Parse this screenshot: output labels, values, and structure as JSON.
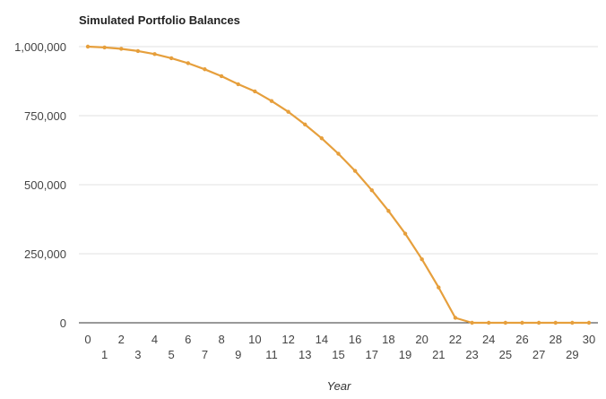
{
  "chart_data": {
    "type": "line",
    "title": "Simulated Portfolio Balances",
    "xlabel": "Year",
    "ylabel": "",
    "ylim": [
      0,
      1000000
    ],
    "yticks": [
      0,
      250000,
      500000,
      750000,
      1000000
    ],
    "ytick_labels": [
      "0",
      "250,000",
      "500,000",
      "750,000",
      "1,000,000"
    ],
    "xlim": [
      0,
      30
    ],
    "xticks": [
      0,
      1,
      2,
      3,
      4,
      5,
      6,
      7,
      8,
      9,
      10,
      11,
      12,
      13,
      14,
      15,
      16,
      17,
      18,
      19,
      20,
      21,
      22,
      23,
      24,
      25,
      26,
      27,
      28,
      29,
      30
    ],
    "grid": true,
    "legend": "none",
    "series": [
      {
        "color": "#e69f3c",
        "x": [
          0,
          1,
          2,
          3,
          4,
          5,
          6,
          7,
          8,
          9,
          10,
          11,
          12,
          13,
          14,
          15,
          16,
          17,
          18,
          19,
          20,
          21,
          22,
          23,
          24,
          25,
          26,
          27,
          28,
          29,
          30
        ],
        "values": [
          1000000,
          997000,
          992000,
          984000,
          973000,
          958000,
          940000,
          918000,
          893000,
          864000,
          838000,
          803000,
          764000,
          718000,
          668000,
          612000,
          550000,
          480000,
          405000,
          323000,
          230000,
          128000,
          18000,
          0,
          0,
          0,
          0,
          0,
          0,
          0,
          0
        ]
      }
    ]
  }
}
